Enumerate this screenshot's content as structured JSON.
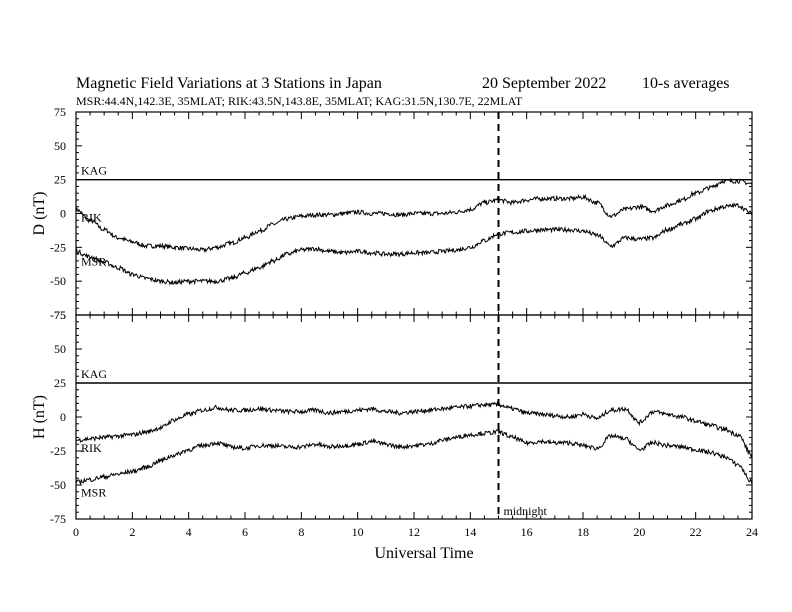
{
  "header": {
    "title": "Magnetic Field Variations at 3 Stations in Japan",
    "date": "20 September 2022",
    "averaging": "10-s averages",
    "stations_line": "MSR:44.4N,142.3E, 35MLAT;  RIK:43.5N,143.8E, 35MLAT;  KAG:31.5N,130.7E, 22MLAT"
  },
  "chart_data": [
    {
      "type": "line",
      "ylabel": "D (nT)",
      "xlim": [
        0,
        24
      ],
      "ylim": [
        -75,
        75
      ],
      "yticks": [
        75,
        50,
        25,
        0,
        -25,
        -50,
        -75
      ],
      "series": [
        {
          "name": "KAG",
          "x": [
            0,
            24
          ],
          "values": [
            25,
            25
          ]
        },
        {
          "name": "RIK",
          "x": [
            0,
            0.5,
            1,
            1.5,
            2,
            2.5,
            3,
            3.5,
            4,
            4.5,
            5,
            5.5,
            6,
            6.5,
            7,
            7.5,
            8,
            8.5,
            9,
            9.5,
            10,
            10.5,
            11,
            11.5,
            12,
            12.5,
            13,
            13.5,
            14,
            14.5,
            15,
            15.5,
            16,
            16.5,
            17,
            17.5,
            18,
            18.5,
            19,
            19.5,
            20,
            20.5,
            21,
            21.5,
            22,
            22.5,
            23,
            23.5,
            24
          ],
          "values": [
            3,
            -5,
            -12,
            -18,
            -21,
            -24,
            -24,
            -25,
            -26,
            -27,
            -25,
            -22,
            -18,
            -13,
            -8,
            -4,
            -2,
            -1,
            -1,
            0,
            1,
            0,
            0,
            -1,
            0,
            0,
            0,
            1,
            3,
            8,
            10,
            8,
            10,
            11,
            11,
            11,
            12,
            8,
            -2,
            3,
            5,
            2,
            6,
            10,
            15,
            19,
            24,
            24,
            22
          ]
        },
        {
          "name": "MSR",
          "x": [
            0,
            0.5,
            1,
            1.5,
            2,
            2.5,
            3,
            3.5,
            4,
            4.5,
            5,
            5.5,
            6,
            6.5,
            7,
            7.5,
            8,
            8.5,
            9,
            9.5,
            10,
            10.5,
            11,
            11.5,
            12,
            12.5,
            13,
            13.5,
            14,
            14.5,
            15,
            15.5,
            16,
            16.5,
            17,
            17.5,
            18,
            18.5,
            19,
            19.5,
            20,
            20.5,
            21,
            21.5,
            22,
            22.5,
            23,
            23.5,
            24
          ],
          "values": [
            -28,
            -32,
            -36,
            -40,
            -45,
            -48,
            -50,
            -51,
            -50,
            -50,
            -50,
            -48,
            -44,
            -40,
            -35,
            -30,
            -27,
            -26,
            -28,
            -29,
            -28,
            -29,
            -30,
            -30,
            -29,
            -29,
            -28,
            -27,
            -25,
            -20,
            -15,
            -14,
            -13,
            -12,
            -12,
            -12,
            -13,
            -16,
            -24,
            -18,
            -19,
            -18,
            -12,
            -8,
            -4,
            2,
            5,
            6,
            0
          ]
        }
      ]
    },
    {
      "type": "line",
      "ylabel": "H (nT)",
      "xlabel": "Universal Time",
      "xlim": [
        0,
        24
      ],
      "ylim": [
        -75,
        75
      ],
      "xticks": [
        0,
        2,
        4,
        6,
        8,
        10,
        12,
        14,
        16,
        18,
        20,
        22,
        24
      ],
      "yticks": [
        75,
        50,
        25,
        0,
        -25,
        -50,
        -75
      ],
      "series": [
        {
          "name": "KAG",
          "x": [
            0,
            24
          ],
          "values": [
            25,
            25
          ]
        },
        {
          "name": "RIK",
          "x": [
            0,
            0.5,
            1,
            1.5,
            2,
            2.5,
            3,
            3.5,
            4,
            4.5,
            5,
            5.5,
            6,
            6.5,
            7,
            7.5,
            8,
            8.5,
            9,
            9.5,
            10,
            10.5,
            11,
            11.5,
            12,
            12.5,
            13,
            13.5,
            14,
            14.5,
            15,
            15.5,
            16,
            16.5,
            17,
            17.5,
            18,
            18.5,
            19,
            19.5,
            20,
            20.5,
            21,
            21.5,
            22,
            22.5,
            23,
            23.5,
            24
          ],
          "values": [
            -17,
            -16,
            -15,
            -14,
            -13,
            -11,
            -8,
            -2,
            2,
            5,
            7,
            5,
            5,
            6,
            5,
            4,
            4,
            5,
            3,
            4,
            5,
            6,
            4,
            3,
            4,
            5,
            6,
            7,
            8,
            9,
            9,
            6,
            3,
            2,
            1,
            0,
            2,
            -1,
            5,
            6,
            -4,
            4,
            2,
            0,
            -3,
            -6,
            -9,
            -13,
            -28
          ]
        },
        {
          "name": "MSR",
          "x": [
            0,
            0.5,
            1,
            1.5,
            2,
            2.5,
            3,
            3.5,
            4,
            4.5,
            5,
            5.5,
            6,
            6.5,
            7,
            7.5,
            8,
            8.5,
            9,
            9.5,
            10,
            10.5,
            11,
            11.5,
            12,
            12.5,
            13,
            13.5,
            14,
            14.5,
            15,
            15.5,
            16,
            16.5,
            17,
            17.5,
            18,
            18.5,
            19,
            19.5,
            20,
            20.5,
            21,
            21.5,
            22,
            22.5,
            23,
            23.5,
            24
          ],
          "values": [
            -48,
            -46,
            -44,
            -42,
            -40,
            -37,
            -32,
            -28,
            -24,
            -21,
            -19,
            -22,
            -23,
            -21,
            -21,
            -22,
            -22,
            -20,
            -22,
            -21,
            -20,
            -18,
            -20,
            -22,
            -21,
            -20,
            -17,
            -15,
            -13,
            -12,
            -11,
            -15,
            -19,
            -18,
            -19,
            -19,
            -21,
            -23,
            -14,
            -16,
            -24,
            -19,
            -21,
            -22,
            -24,
            -26,
            -29,
            -35,
            -48
          ]
        }
      ]
    }
  ],
  "midnight_marker": {
    "x": 15,
    "label": "midnight"
  }
}
